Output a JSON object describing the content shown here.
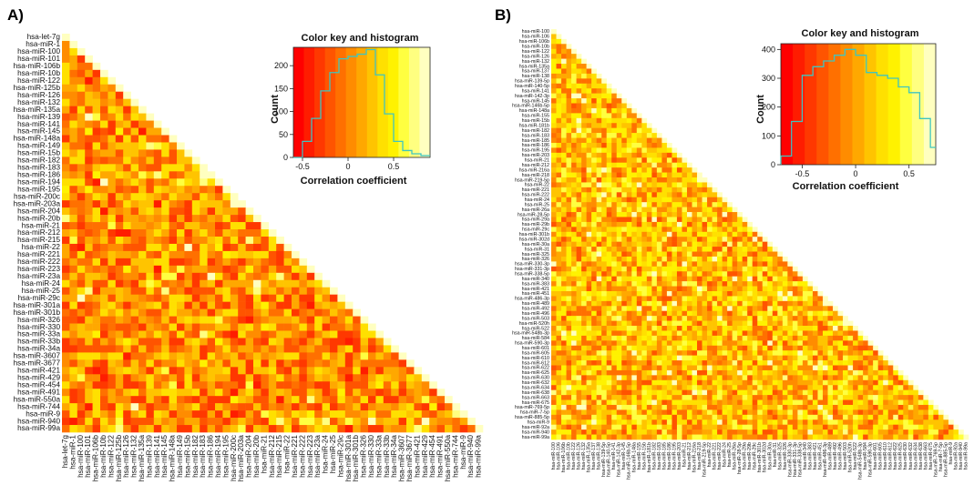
{
  "chart_data": [
    {
      "type": "heatmap",
      "panel_label": "A)",
      "shape": "lower-triangle",
      "labels": [
        "hsa-let-7g",
        "hsa-miR-1",
        "hsa-miR-100",
        "hsa-miR-101",
        "hsa-miR-106b",
        "hsa-miR-10b",
        "hsa-miR-122",
        "hsa-miR-125b",
        "hsa-miR-126",
        "hsa-miR-132",
        "hsa-miR-135a",
        "hsa-miR-139",
        "hsa-miR-141",
        "hsa-miR-145",
        "hsa-miR-148a",
        "hsa-miR-149",
        "hsa-miR-15b",
        "hsa-miR-182",
        "hsa-miR-183",
        "hsa-miR-186",
        "hsa-miR-194",
        "hsa-miR-195",
        "hsa-miR-200c",
        "hsa-miR-203a",
        "hsa-miR-204",
        "hsa-miR-20b",
        "hsa-miR-21",
        "hsa-miR-212",
        "hsa-miR-215",
        "hsa-miR-22",
        "hsa-miR-221",
        "hsa-miR-222",
        "hsa-miR-223",
        "hsa-miR-23a",
        "hsa-miR-24",
        "hsa-miR-25",
        "hsa-miR-29c",
        "hsa-miR-301a",
        "hsa-miR-301b",
        "hsa-miR-326",
        "hsa-miR-330",
        "hsa-miR-33a",
        "hsa-miR-33b",
        "hsa-miR-34a",
        "hsa-miR-3607",
        "hsa-miR-3677",
        "hsa-miR-421",
        "hsa-miR-429",
        "hsa-miR-454",
        "hsa-miR-491",
        "hsa-miR-550a",
        "hsa-miR-744",
        "hsa-miR-9",
        "hsa-miR-940",
        "hsa-miR-99a"
      ],
      "color_key": {
        "title": "Color key and histogram",
        "xlabel": "Correlation coefficient",
        "ylabel": "Count",
        "xticks": [
          -0.5,
          0,
          0.5
        ],
        "yticks": [
          0,
          50,
          100,
          150,
          200
        ],
        "xlim": [
          -0.6,
          0.9
        ],
        "ylim": [
          0,
          240
        ],
        "bins": [
          -0.6,
          -0.5,
          -0.4,
          -0.3,
          -0.2,
          -0.1,
          0.0,
          0.1,
          0.2,
          0.3,
          0.4,
          0.5,
          0.6,
          0.7,
          0.8,
          0.9
        ],
        "counts": [
          0,
          35,
          85,
          145,
          185,
          215,
          220,
          225,
          235,
          180,
          95,
          35,
          15,
          8,
          4
        ],
        "colors": [
          "#ff0000",
          "#ff1c00",
          "#ff3800",
          "#ff5400",
          "#ff7000",
          "#ff8c00",
          "#ffa800",
          "#ffc400",
          "#ffe000",
          "#fff200",
          "#ffff40",
          "#ffff80",
          "#ffffc0"
        ]
      }
    },
    {
      "type": "heatmap",
      "panel_label": "B)",
      "shape": "lower-triangle",
      "labels": [
        "hsa-miR-100",
        "hsa-miR-106",
        "hsa-miR-106b",
        "hsa-miR-10b",
        "hsa-miR-122",
        "hsa-miR-126",
        "hsa-miR-132",
        "hsa-miR-135a",
        "hsa-miR-137",
        "hsa-miR-138",
        "hsa-miR-139-5p",
        "hsa-miR-140-5p",
        "hsa-miR-141",
        "hsa-miR-142-3p",
        "hsa-miR-145",
        "hsa-miR-146b-5p",
        "hsa-miR-148a",
        "hsa-miR-155",
        "hsa-miR-15b",
        "hsa-miR-181b",
        "hsa-miR-182",
        "hsa-miR-183",
        "hsa-miR-185",
        "hsa-miR-186",
        "hsa-miR-195",
        "hsa-miR-203",
        "hsa-miR-21",
        "hsa-miR-212",
        "hsa-miR-216a",
        "hsa-miR-218",
        "hsa-miR-219-5p",
        "hsa-miR-22",
        "hsa-miR-221",
        "hsa-miR-222",
        "hsa-miR-24",
        "hsa-miR-25",
        "hsa-miR-26a",
        "hsa-miR-28-5p",
        "hsa-miR-29a",
        "hsa-miR-29b",
        "hsa-miR-29c",
        "hsa-miR-301b",
        "hsa-miR-302d",
        "hsa-miR-30a",
        "hsa-miR-31",
        "hsa-miR-325",
        "hsa-miR-326",
        "hsa-miR-330-3p",
        "hsa-miR-331-3p",
        "hsa-miR-338-5p",
        "hsa-miR-340",
        "hsa-miR-383",
        "hsa-miR-421",
        "hsa-miR-451",
        "hsa-miR-486-3p",
        "hsa-miR-489",
        "hsa-miR-492",
        "hsa-miR-496",
        "hsa-miR-503",
        "hsa-miR-520h",
        "hsa-miR-522",
        "hsa-miR-548b-3p",
        "hsa-miR-584",
        "hsa-miR-590-3p",
        "hsa-miR-601",
        "hsa-miR-605",
        "hsa-miR-610",
        "hsa-miR-612",
        "hsa-miR-622",
        "hsa-miR-625",
        "hsa-miR-630",
        "hsa-miR-632",
        "hsa-miR-634",
        "hsa-miR-638",
        "hsa-miR-663",
        "hsa-miR-675",
        "hsa-miR-769-5p",
        "hsa-miR-7-5p",
        "hsa-miR-885-5p",
        "hsa-miR-9",
        "hsa-miR-92a",
        "hsa-miR-940",
        "hsa-miR-99a"
      ],
      "color_key": {
        "title": "Color key and histogram",
        "xlabel": "Correlation coefficient",
        "ylabel": "Count",
        "xticks": [
          -0.5,
          0,
          0.5
        ],
        "yticks": [
          0,
          100,
          200,
          300,
          400
        ],
        "xlim": [
          -0.7,
          0.75
        ],
        "ylim": [
          0,
          420
        ],
        "bins": [
          -0.7,
          -0.6,
          -0.5,
          -0.4,
          -0.3,
          -0.2,
          -0.1,
          0.0,
          0.1,
          0.2,
          0.3,
          0.4,
          0.5,
          0.6,
          0.7,
          0.75
        ],
        "counts": [
          30,
          150,
          310,
          340,
          360,
          380,
          400,
          380,
          320,
          310,
          300,
          270,
          250,
          160,
          60
        ],
        "colors": [
          "#ff0000",
          "#ff1c00",
          "#ff3800",
          "#ff5400",
          "#ff7000",
          "#ff8c00",
          "#ffa800",
          "#ffc400",
          "#ffe000",
          "#fff200",
          "#ffff40",
          "#ffff80",
          "#ffffc0"
        ]
      }
    }
  ]
}
